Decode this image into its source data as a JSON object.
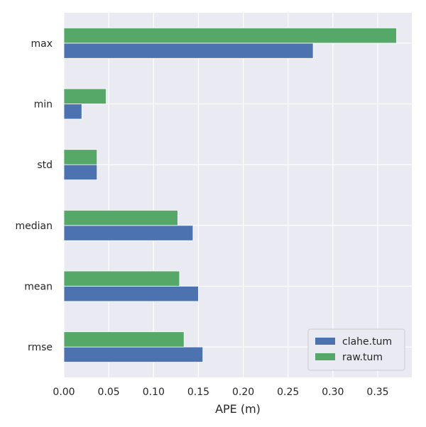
{
  "chart_data": {
    "type": "bar",
    "orientation": "horizontal",
    "categories": [
      "rmse",
      "mean",
      "median",
      "std",
      "min",
      "max"
    ],
    "series": [
      {
        "name": "clahe.tum",
        "values": [
          0.155,
          0.15,
          0.144,
          0.037,
          0.02,
          0.278
        ],
        "color": "#4c72b0"
      },
      {
        "name": "raw.tum",
        "values": [
          0.134,
          0.129,
          0.127,
          0.037,
          0.047,
          0.371
        ],
        "color": "#55a868"
      }
    ],
    "title": "",
    "xlabel": "APE (m)",
    "ylabel": "",
    "xlim": [
      0,
      0.388
    ],
    "xticks": [
      "0.00",
      "0.05",
      "0.10",
      "0.15",
      "0.20",
      "0.25",
      "0.30",
      "0.35"
    ],
    "grid": true,
    "legend_position": "lower right",
    "background": "#eaeaf2"
  }
}
